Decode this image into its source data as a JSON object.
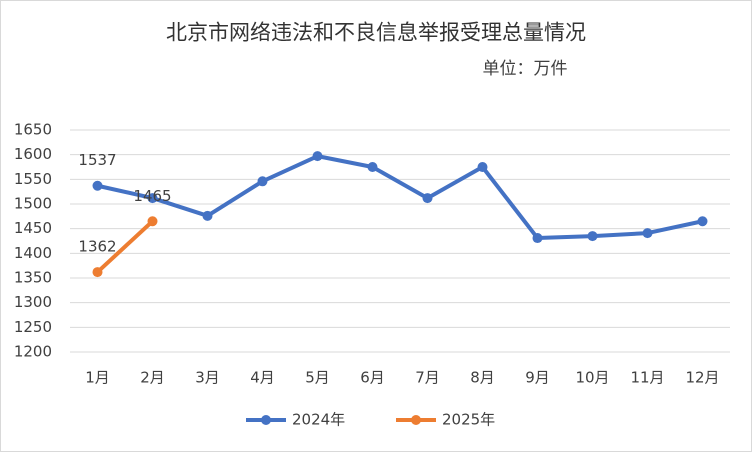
{
  "chart_data": {
    "type": "line",
    "title": "北京市网络违法和不良信息举报受理总量情况",
    "subtitle": "单位：万件",
    "categories": [
      "1月",
      "2月",
      "3月",
      "4月",
      "5月",
      "6月",
      "7月",
      "8月",
      "9月",
      "10月",
      "11月",
      "12月"
    ],
    "series": [
      {
        "name": "2024年",
        "color": "#4472c4",
        "values": [
          1537,
          1512,
          1476,
          1546,
          1597,
          1575,
          1512,
          1575,
          1431,
          1435,
          1441,
          1465
        ],
        "value_labels": [
          "1537",
          null,
          null,
          null,
          null,
          null,
          null,
          null,
          null,
          null,
          null,
          null
        ]
      },
      {
        "name": "2025年",
        "color": "#ed7d31",
        "values": [
          1362,
          1465,
          null,
          null,
          null,
          null,
          null,
          null,
          null,
          null,
          null,
          null
        ],
        "value_labels": [
          "1362",
          "1465",
          null,
          null,
          null,
          null,
          null,
          null,
          null,
          null,
          null,
          null
        ]
      }
    ],
    "ylim": [
      1200,
      1650
    ],
    "yticks": [
      1200,
      1250,
      1300,
      1350,
      1400,
      1450,
      1500,
      1550,
      1600,
      1650
    ],
    "grid": true,
    "legend": "bottom"
  }
}
